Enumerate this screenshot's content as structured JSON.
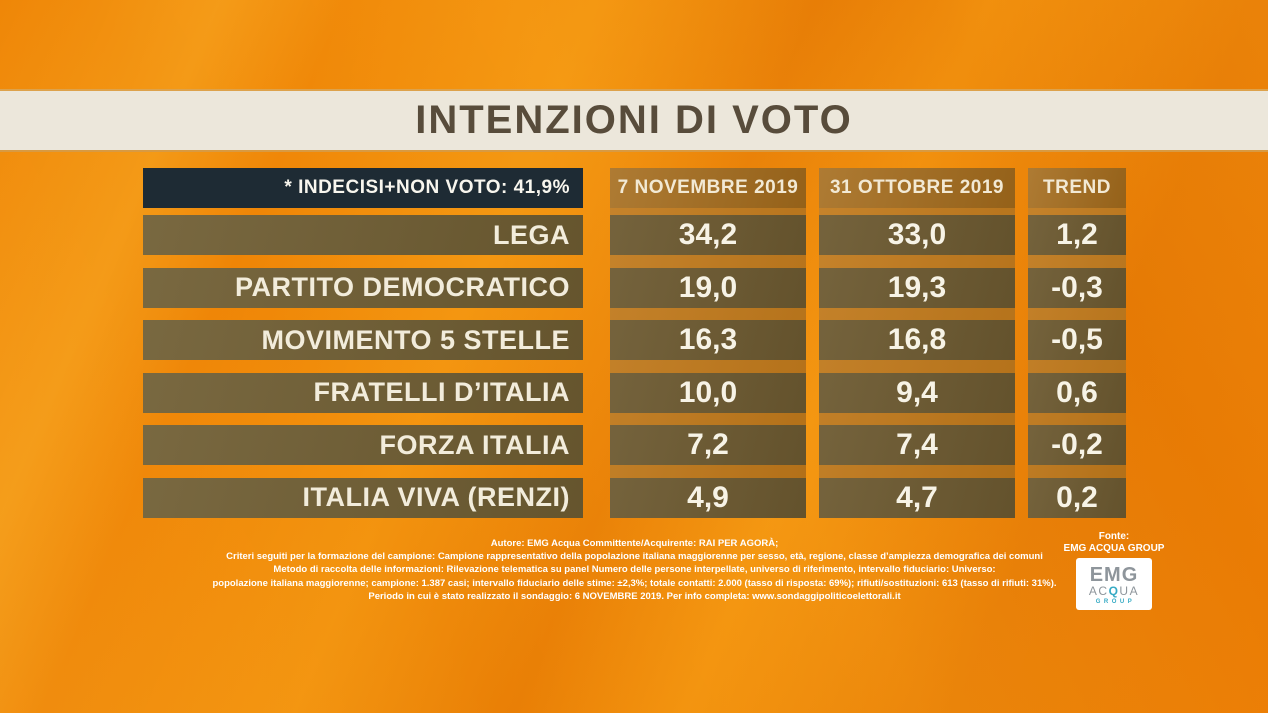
{
  "title": "INTENZIONI DI VOTO",
  "note": "* INDECISI+NON VOTO: 41,9%",
  "columns": [
    "7 NOVEMBRE 2019",
    "31 OTTOBRE 2019",
    "TREND"
  ],
  "parties": [
    {
      "name": "LEGA",
      "nov7": "34,2",
      "oct31": "33,0",
      "trend": "1,2"
    },
    {
      "name": "PARTITO DEMOCRATICO",
      "nov7": "19,0",
      "oct31": "19,3",
      "trend": "-0,3"
    },
    {
      "name": "MOVIMENTO 5 STELLE",
      "nov7": "16,3",
      "oct31": "16,8",
      "trend": "-0,5"
    },
    {
      "name": "FRATELLI D’ITALIA",
      "nov7": "10,0",
      "oct31": "9,4",
      "trend": "0,6"
    },
    {
      "name": "FORZA ITALIA",
      "nov7": "7,2",
      "oct31": "7,4",
      "trend": "-0,2"
    },
    {
      "name": "ITALIA VIVA (RENZI)",
      "nov7": "4,9",
      "oct31": "4,7",
      "trend": "0,2"
    }
  ],
  "footer": {
    "lines": [
      "Autore: EMG Acqua Committente/Acquirente: RAI PER AGORÀ;",
      "Criteri seguiti per la formazione del campione: Campione rappresentativo della popolazione italiana maggiorenne per sesso, età, regione, classe d’ampiezza demografica dei comuni",
      "Metodo di raccolta delle informazioni: Rilevazione telematica su panel Numero delle persone interpellate, universo di riferimento, intervallo fiduciario: Universo:",
      "popolazione italiana maggiorenne; campione: 1.387 casi; intervallo fiduciario delle stime: ±2,3%; totale contatti: 2.000 (tasso di risposta: 69%); rifiuti/sostituzioni: 613 (tasso di rifiuti: 31%).",
      "Periodo in cui è stato realizzato il sondaggio: 6 NOVEMBRE 2019. Per info completa: www.sondaggipoliticoelettorali.it"
    ]
  },
  "fonte": {
    "label": "Fonte:",
    "name": "EMG ACQUA GROUP"
  },
  "logo": {
    "emg": "EMG",
    "acqua_pre": "AC",
    "acqua_q": "Q",
    "acqua_post": "UA",
    "group": "GROUP"
  },
  "colors": {
    "background_orange": "#ef8506",
    "title_band_cream": "#ece7db",
    "title_text_brown": "#584c3b",
    "note_navy": "#1e2b34",
    "header_cell_brown": "#a56c1c",
    "row_cell_olive": "#6c5930",
    "column_band_brown": "#c1791a",
    "text_cream": "#f2ecdb",
    "logo_gray": "#8e959b",
    "logo_teal": "#35aac4"
  },
  "chart_data": {
    "type": "table",
    "title": "INTENZIONI DI VOTO",
    "note": "* INDECISI+NON VOTO: 41,9%",
    "columns": [
      "7 NOVEMBRE 2019",
      "31 OTTOBRE 2019",
      "TREND"
    ],
    "rows": [
      {
        "party": "LEGA",
        "values": [
          34.2,
          33.0,
          1.2
        ]
      },
      {
        "party": "PARTITO DEMOCRATICO",
        "values": [
          19.0,
          19.3,
          -0.3
        ]
      },
      {
        "party": "MOVIMENTO 5 STELLE",
        "values": [
          16.3,
          16.8,
          -0.5
        ]
      },
      {
        "party": "FRATELLI D’ITALIA",
        "values": [
          10.0,
          9.4,
          0.6
        ]
      },
      {
        "party": "FORZA ITALIA",
        "values": [
          7.2,
          7.4,
          -0.2
        ]
      },
      {
        "party": "ITALIA VIVA (RENZI)",
        "values": [
          4.9,
          4.7,
          0.2
        ]
      }
    ],
    "source": "EMG ACQUA GROUP",
    "layout": "broadcast poll table, label column + two date columns + trend column"
  }
}
